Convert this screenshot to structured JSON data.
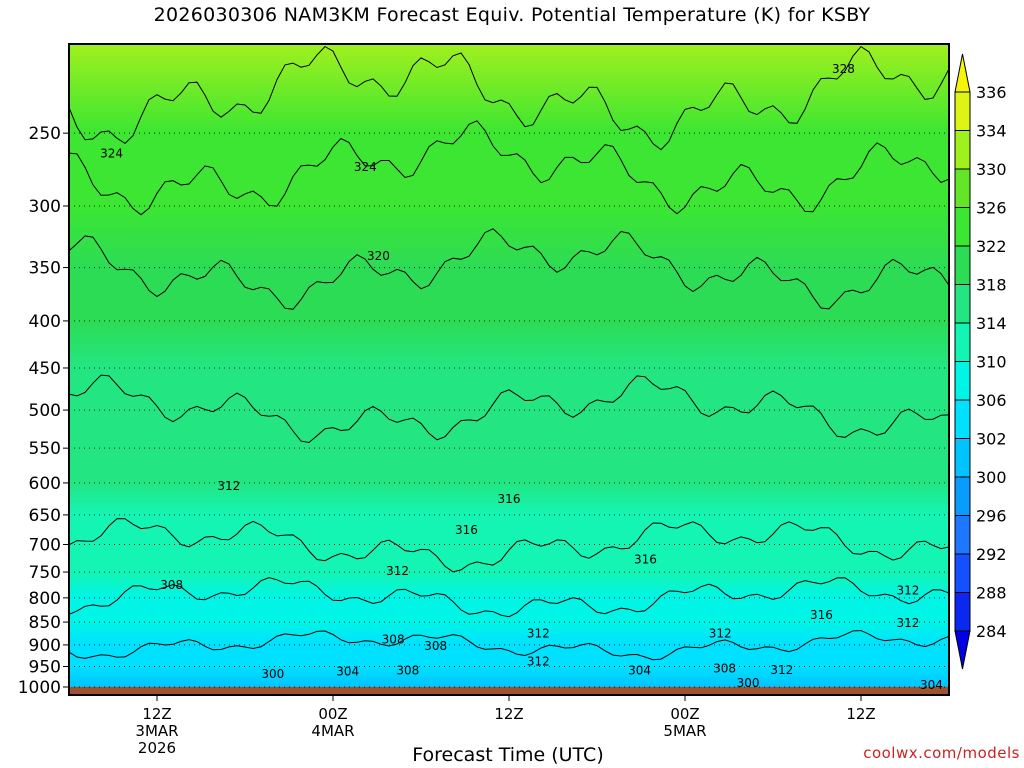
{
  "title": "2026030306 NAM3KM Forecast Equiv. Potential Temperature (K) for KSBY",
  "credit": "coolwx.com/models",
  "colors": {
    "frame": "#000000",
    "ground": "#a0522d"
  },
  "chart_data": {
    "type": "heatmap",
    "title": "2026030306 NAM3KM Forecast Equiv. Potential Temperature (K) for KSBY",
    "xlabel": "Forecast Time (UTC)",
    "ylabel": "",
    "y_axis": {
      "scale": "log",
      "direction": "pressure-decreasing-upward",
      "range": [
        1000,
        200
      ],
      "ticks": [
        1000,
        950,
        900,
        850,
        800,
        750,
        700,
        650,
        600,
        550,
        500,
        450,
        400,
        350,
        300,
        250
      ],
      "grid": "dotted"
    },
    "x_axis": {
      "range_hours": [
        0,
        60
      ],
      "ticks": [
        {
          "hour": 6,
          "lines": [
            "12Z",
            "3MAR",
            "2026"
          ]
        },
        {
          "hour": 18,
          "lines": [
            "00Z",
            "4MAR"
          ]
        },
        {
          "hour": 30,
          "lines": [
            "12Z"
          ]
        },
        {
          "hour": 42,
          "lines": [
            "00Z",
            "5MAR"
          ]
        },
        {
          "hour": 54,
          "lines": [
            "12Z"
          ]
        }
      ]
    },
    "colorbar": {
      "levels": [
        284,
        288,
        292,
        296,
        300,
        302,
        306,
        310,
        314,
        318,
        322,
        326,
        330,
        334,
        336
      ],
      "colors": [
        "#0000e6",
        "#0a28f0",
        "#1450ff",
        "#1e78ff",
        "#0a9bff",
        "#00c3ff",
        "#00e1ff",
        "#00f5e6",
        "#14f5b4",
        "#23e682",
        "#2ddc55",
        "#3ce632",
        "#64e628",
        "#a0f01e",
        "#dcf514",
        "#f5f50a"
      ]
    },
    "profile": [
      {
        "p": 1000,
        "value": 300
      },
      {
        "p": 950,
        "value": 302
      },
      {
        "p": 900,
        "value": 304
      },
      {
        "p": 850,
        "value": 306
      },
      {
        "p": 800,
        "value": 308
      },
      {
        "p": 750,
        "value": 310
      },
      {
        "p": 700,
        "value": 312
      },
      {
        "p": 650,
        "value": 313
      },
      {
        "p": 600,
        "value": 314
      },
      {
        "p": 550,
        "value": 315
      },
      {
        "p": 500,
        "value": 316
      },
      {
        "p": 450,
        "value": 317
      },
      {
        "p": 400,
        "value": 318
      },
      {
        "p": 350,
        "value": 320
      },
      {
        "p": 300,
        "value": 323
      },
      {
        "p": 250,
        "value": 325
      },
      {
        "p": 200,
        "value": 332
      }
    ],
    "annotations": [
      {
        "text": "328",
        "hour": 52.8,
        "p": 213
      },
      {
        "text": "324",
        "hour": 2.9,
        "p": 263
      },
      {
        "text": "324",
        "hour": 20.2,
        "p": 272
      },
      {
        "text": "320",
        "hour": 21.1,
        "p": 340
      },
      {
        "text": "316",
        "hour": 30.0,
        "p": 625
      },
      {
        "text": "316",
        "hour": 27.1,
        "p": 675
      },
      {
        "text": "316",
        "hour": 39.3,
        "p": 727
      },
      {
        "text": "316",
        "hour": 51.3,
        "p": 835
      },
      {
        "text": "312",
        "hour": 10.9,
        "p": 605
      },
      {
        "text": "312",
        "hour": 22.4,
        "p": 748
      },
      {
        "text": "312",
        "hour": 57.2,
        "p": 785
      },
      {
        "text": "312",
        "hour": 57.2,
        "p": 852
      },
      {
        "text": "312",
        "hour": 32.0,
        "p": 875
      },
      {
        "text": "312",
        "hour": 44.4,
        "p": 875
      },
      {
        "text": "312",
        "hour": 32.0,
        "p": 938
      },
      {
        "text": "312",
        "hour": 48.6,
        "p": 958
      },
      {
        "text": "308",
        "hour": 7.0,
        "p": 775
      },
      {
        "text": "308",
        "hour": 22.1,
        "p": 888
      },
      {
        "text": "308",
        "hour": 25.0,
        "p": 902
      },
      {
        "text": "308",
        "hour": 23.1,
        "p": 960
      },
      {
        "text": "308",
        "hour": 44.7,
        "p": 955
      },
      {
        "text": "304",
        "hour": 19.0,
        "p": 962
      },
      {
        "text": "304",
        "hour": 38.9,
        "p": 960
      },
      {
        "text": "304",
        "hour": 58.8,
        "p": 995
      },
      {
        "text": "300",
        "hour": 13.9,
        "p": 968
      },
      {
        "text": "300",
        "hour": 46.3,
        "p": 990
      }
    ]
  }
}
